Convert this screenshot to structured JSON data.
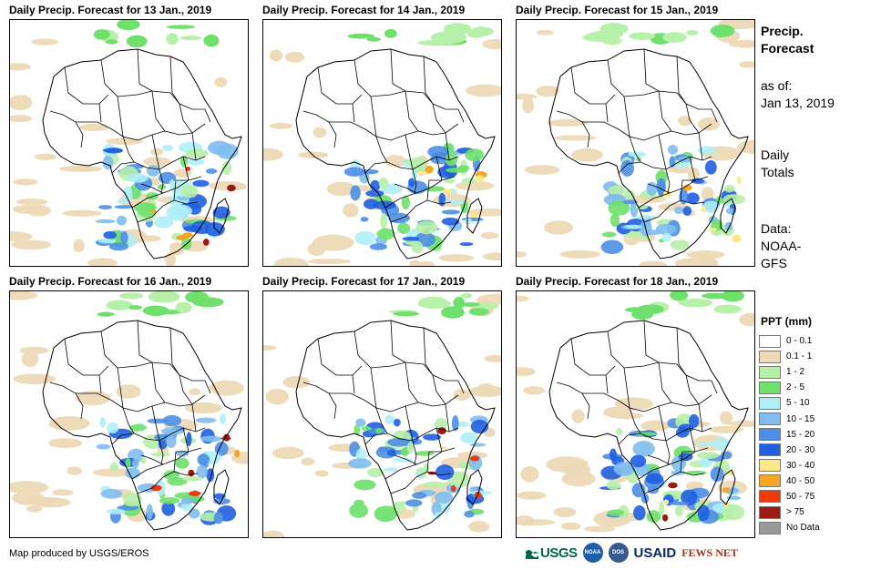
{
  "panels": [
    {
      "title": "Daily Precip. Forecast for 13 Jan., 2019",
      "seed": 13
    },
    {
      "title": "Daily Precip. Forecast for 14 Jan., 2019",
      "seed": 14
    },
    {
      "title": "Daily Precip. Forecast for 15 Jan., 2019",
      "seed": 15
    },
    {
      "title": "Daily Precip. Forecast for 16 Jan., 2019",
      "seed": 16
    },
    {
      "title": "Daily Precip. Forecast for 17 Jan., 2019",
      "seed": 17
    },
    {
      "title": "Daily Precip. Forecast for 18 Jan., 2019",
      "seed": 18
    }
  ],
  "sidebar": {
    "title_line1": "Precip.",
    "title_line2": "Forecast",
    "asof_label": "as of:",
    "asof_date": "Jan 13, 2019",
    "totals_line1": "Daily",
    "totals_line2": "Totals",
    "data_label": "Data:",
    "data_line1": "NOAA-",
    "data_line2": "GFS"
  },
  "legend": {
    "title": "PPT (mm)",
    "items": [
      {
        "label": "0 - 0.1",
        "color": "#ffffff"
      },
      {
        "label": "0.1 - 1",
        "color": "#ecd9b6"
      },
      {
        "label": "1 - 2",
        "color": "#b7f0a8"
      },
      {
        "label": "2 - 5",
        "color": "#6ee06b"
      },
      {
        "label": "5 - 10",
        "color": "#aeeef7"
      },
      {
        "label": "10 - 15",
        "color": "#7fbcf0"
      },
      {
        "label": "15 - 20",
        "color": "#4d8fe6"
      },
      {
        "label": "20 - 30",
        "color": "#1f5fe0"
      },
      {
        "label": "30 - 40",
        "color": "#fde98a"
      },
      {
        "label": "40 - 50",
        "color": "#f5a623"
      },
      {
        "label": "50 - 75",
        "color": "#f03a0c"
      },
      {
        "label": "> 75",
        "color": "#9b1b10"
      },
      {
        "label": "No Data",
        "color": "#999999"
      }
    ]
  },
  "footer": {
    "credit": "Map produced by USGS/EROS"
  },
  "logos": {
    "usgs": "USGS",
    "noaa": "NOAA",
    "dos": "DOS",
    "usaid": "USAID",
    "fews": "FEWS NET"
  }
}
